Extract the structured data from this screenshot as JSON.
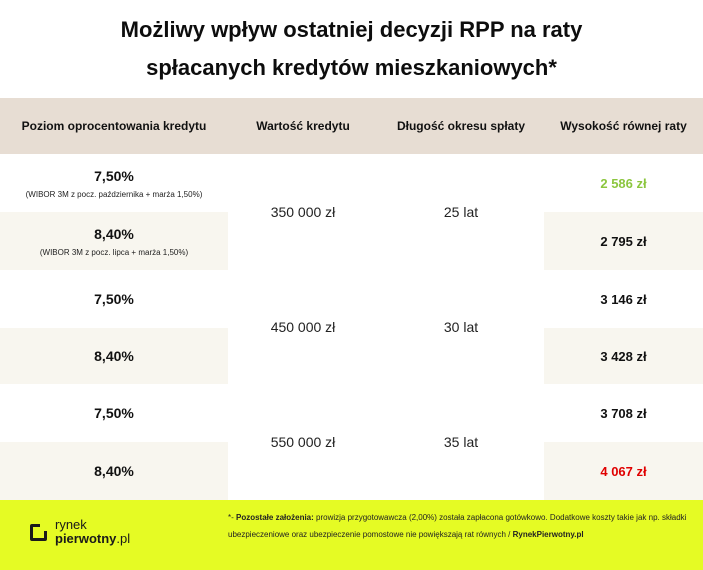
{
  "title": {
    "line1": "Możliwy wpływ ostatniej decyzji RPP na raty",
    "line2": "spłacanych kredytów mieszkaniowych*"
  },
  "headers": {
    "rate": "Poziom oprocentowania kredytu",
    "value": "Wartość kredytu",
    "period": "Długość okresu spłaty",
    "installment": "Wysokość równej raty"
  },
  "colors": {
    "header_bg": "#e7ddd3",
    "row_alt_bg": "#f8f6ef",
    "footer_bg": "#e5fb24",
    "decrease": "#8cc63f",
    "increase": "#e00000"
  },
  "groups": [
    {
      "value": "350 000 zł",
      "period": "25 lat",
      "rows": [
        {
          "rate": "7,50%",
          "note": "(WIBOR 3M z pocz. października + marża 1,50%)",
          "installment": "2 586 zł"
        },
        {
          "rate": "8,40%",
          "note": "(WIBOR 3M z pocz. lipca + marża 1,50%)",
          "installment": "2 795 zł"
        }
      ]
    },
    {
      "value": "450 000 zł",
      "period": "30 lat",
      "rows": [
        {
          "rate": "7,50%",
          "installment": "3 146 zł"
        },
        {
          "rate": "8,40%",
          "installment": "3 428 zł"
        }
      ]
    },
    {
      "value": "550 000 zł",
      "period": "35 lat",
      "rows": [
        {
          "rate": "7,50%",
          "installment": "3 708 zł"
        },
        {
          "rate": "8,40%",
          "installment": "4 067 zł"
        }
      ]
    }
  ],
  "footer": {
    "logo_word1": "rynek",
    "logo_word2_bold": "pierwotny",
    "logo_word2_suffix": ".pl",
    "note_prefix": "*- ",
    "note_label": "Pozostałe założenia:",
    "note_text": " prowizja przygotowawcza (2,00%) została zapłacona gotówkowo. Dodatkowe koszty takie jak np. składki ubezpieczeniowe oraz ubezpieczenie pomostowe nie powiększają rat równych",
    "note_sep": " / ",
    "note_source": "RynekPierwotny.pl"
  }
}
